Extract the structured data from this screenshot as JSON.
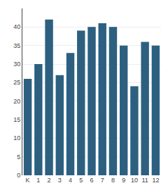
{
  "chart_data": {
    "type": "bar",
    "categories": [
      "K",
      "1",
      "2",
      "3",
      "4",
      "5",
      "6",
      "7",
      "8",
      "9",
      "10",
      "11",
      "12"
    ],
    "values": [
      26,
      30,
      42,
      27,
      33,
      39,
      40,
      41,
      40,
      35,
      24,
      36,
      35
    ],
    "color": "#2d6080",
    "ylim": [
      0,
      45
    ],
    "yticks": [
      0,
      5,
      10,
      15,
      20,
      25,
      30,
      35,
      40
    ],
    "grid": true
  }
}
